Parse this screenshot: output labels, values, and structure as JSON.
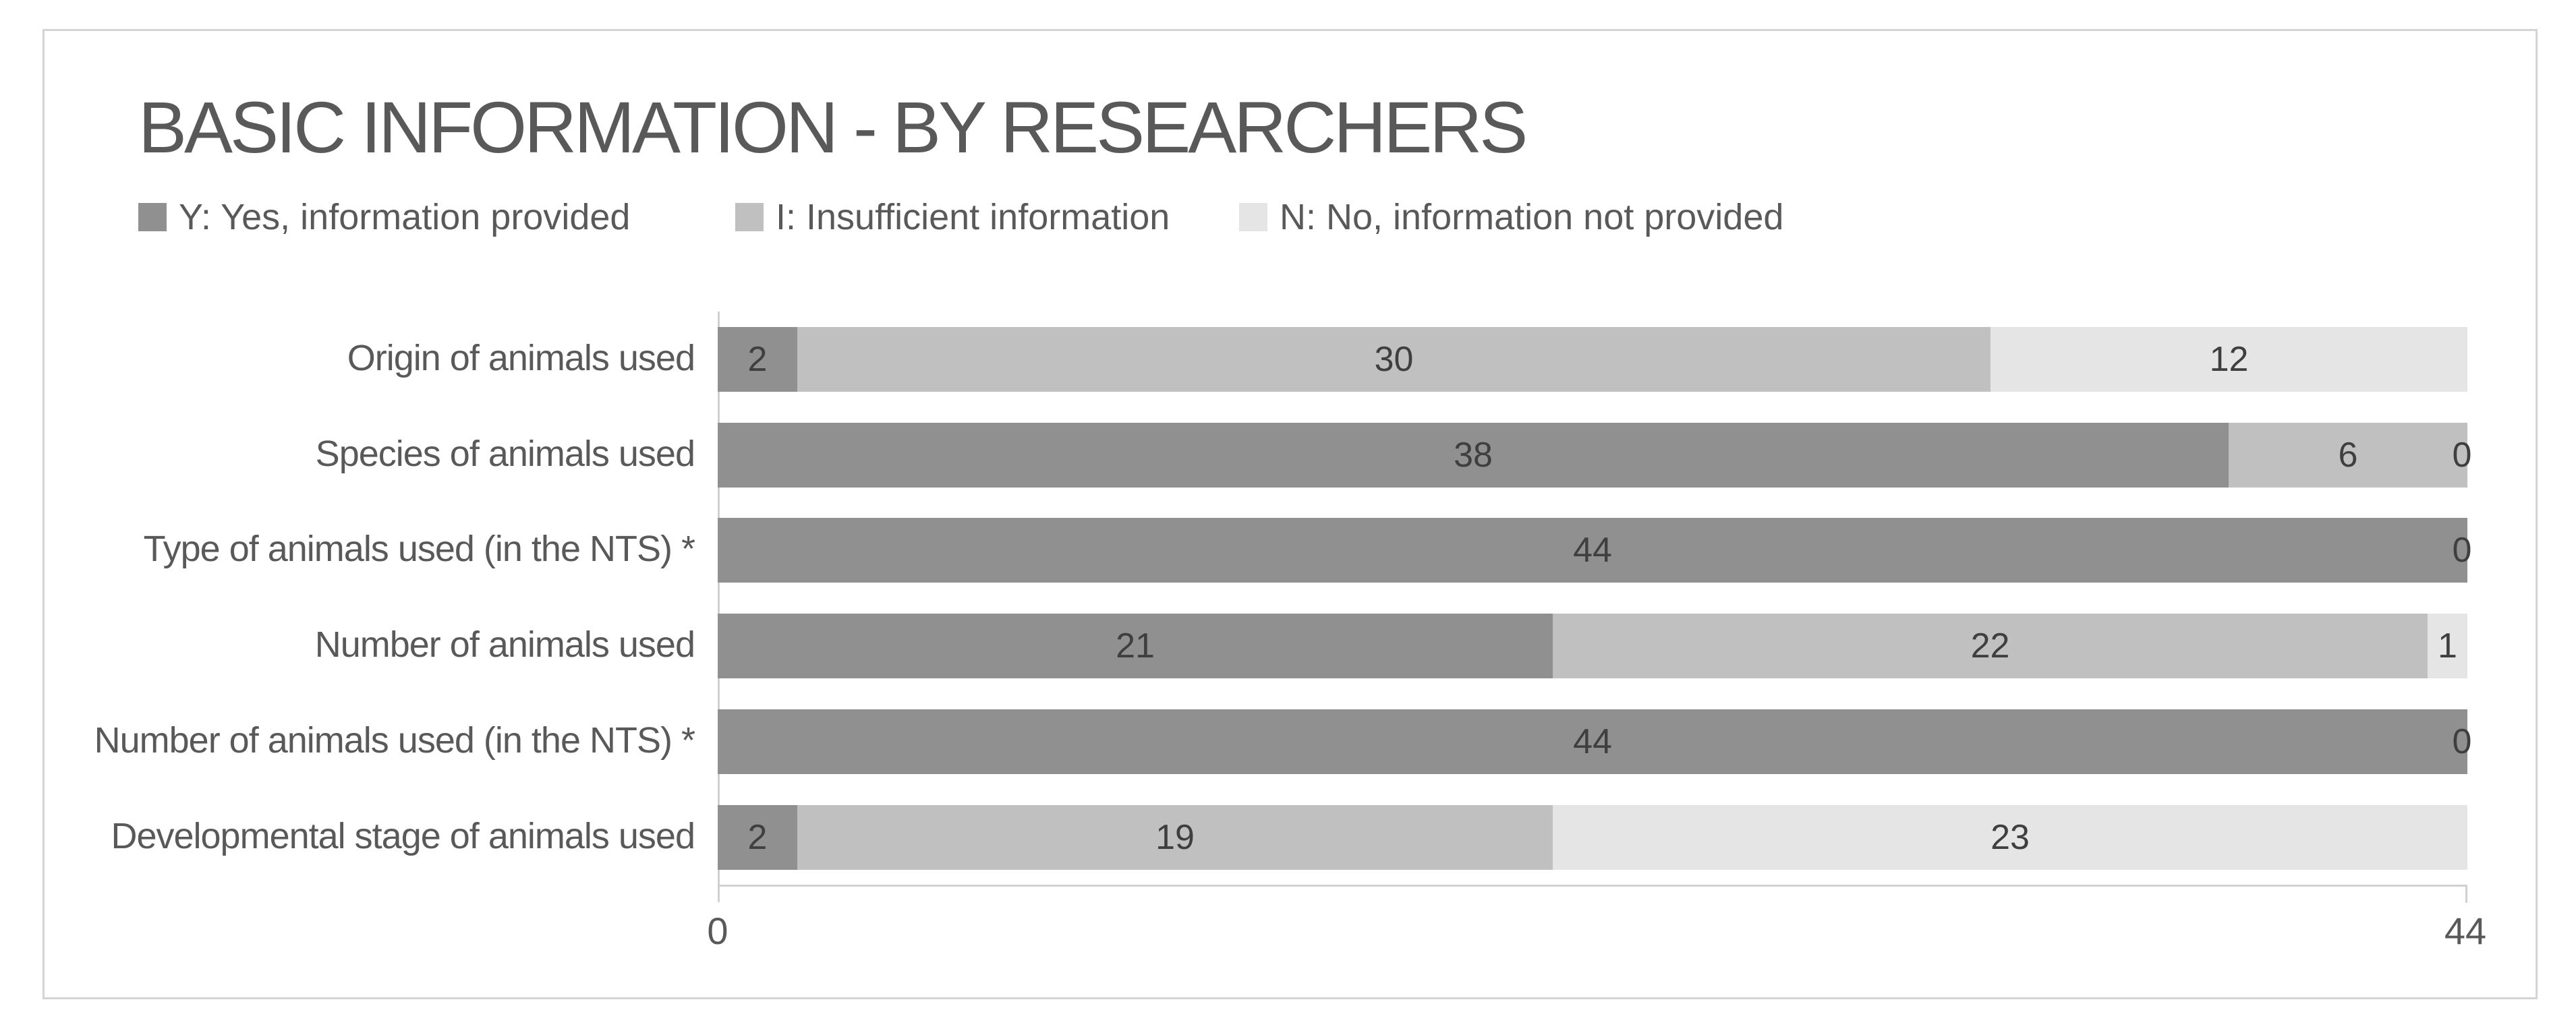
{
  "chart_data": {
    "type": "bar",
    "orientation": "horizontal",
    "stacked": true,
    "title": "BASIC INFORMATION - BY RESEARCHERS",
    "categories": [
      "Origin of animals used",
      "Species of animals used",
      "Type of animals used (in the NTS) *",
      "Number of animals used",
      "Number of animals used (in the NTS) *",
      "Developmental stage of animals used"
    ],
    "series": [
      {
        "name": "Y: Yes, information provided",
        "color": "#909090",
        "values": [
          2,
          38,
          44,
          21,
          44,
          2
        ]
      },
      {
        "name": "I: Insufficient information",
        "color": "#c0c0c0",
        "values": [
          30,
          6,
          0,
          22,
          0,
          19
        ]
      },
      {
        "name": "N: No, information not provided",
        "color": "#e5e5e5",
        "values": [
          12,
          0,
          0,
          1,
          0,
          23
        ]
      }
    ],
    "totals_per_category": [
      44,
      44,
      44,
      44,
      44,
      44
    ],
    "xlabel": "",
    "ylabel": "",
    "xlim": [
      0,
      44
    ],
    "x_tick_labels": [
      "0",
      "44"
    ],
    "grid": false,
    "data_labels": true,
    "legend_position": "top-left"
  },
  "colors": {
    "series_yes": "#909090",
    "series_insufficient": "#c0c0c0",
    "series_no": "#e5e5e5",
    "title_text": "#595959",
    "label_text": "#595959",
    "data_label_text": "#3f3f3f",
    "axis_line": "#d0d0d0",
    "chart_border": "#d4d4d4",
    "background": "#ffffff"
  }
}
